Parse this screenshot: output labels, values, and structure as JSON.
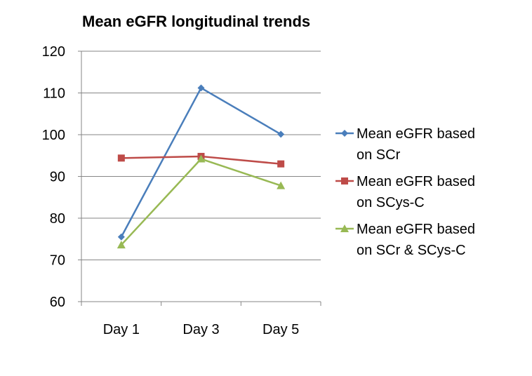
{
  "chart_data": {
    "type": "line",
    "title": "Mean eGFR longitudinal trends",
    "categories": [
      "Day 1",
      "Day 3",
      "Day 5"
    ],
    "ylim": [
      60,
      120
    ],
    "yticks": [
      "60",
      "70",
      "80",
      "90",
      "100",
      "110",
      "120"
    ],
    "grid": true,
    "legend_position": "right",
    "series": [
      {
        "name_lines": [
          "Mean eGFR based",
          "on SCr"
        ],
        "values": [
          75.5,
          111.2,
          100.1
        ],
        "color": "#4a7ebb",
        "marker": "diamond"
      },
      {
        "name_lines": [
          "Mean eGFR based",
          "on SCys-C"
        ],
        "values": [
          94.4,
          94.8,
          93.0
        ],
        "color": "#be4b48",
        "marker": "square"
      },
      {
        "name_lines": [
          "Mean eGFR based",
          "on SCr & SCys-C"
        ],
        "values": [
          73.6,
          94.2,
          87.8
        ],
        "color": "#98b954",
        "marker": "triangle"
      }
    ]
  }
}
